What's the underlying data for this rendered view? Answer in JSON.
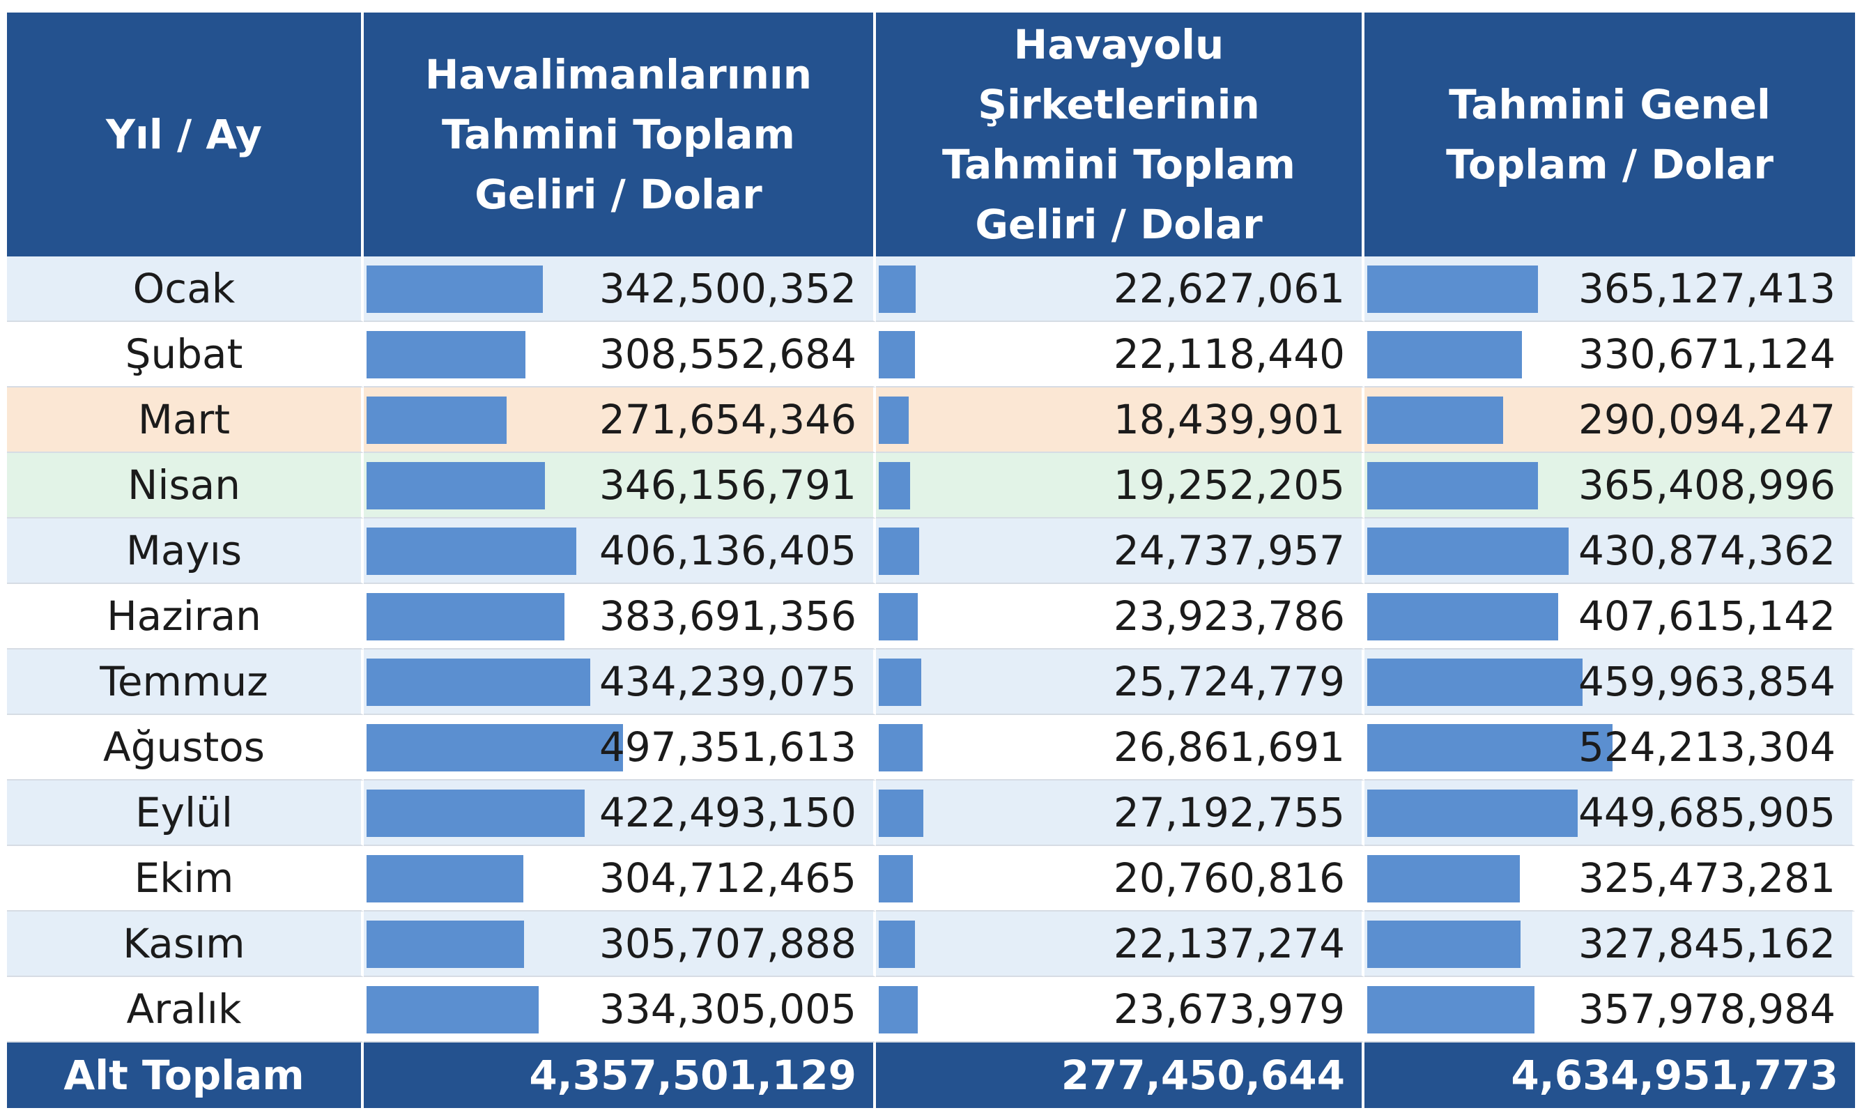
{
  "chart_data": {
    "type": "table",
    "columns": [
      "Yıl / Ay",
      "Havalimanlarının\nTahmini Toplam\nGeliri / Dolar",
      "Havayolu Şirketlerinin\nTahmini Toplam\nGeliri / Dolar",
      "Tahmini Genel\nToplam / Dolar"
    ],
    "rows": [
      {
        "month": "Ocak",
        "values": [
          342500352,
          22627061,
          365127413
        ],
        "labels": [
          "342,500,352",
          "22,627,061",
          "365,127,413"
        ]
      },
      {
        "month": "Şubat",
        "values": [
          308552684,
          22118440,
          330671124
        ],
        "labels": [
          "308,552,684",
          "22,118,440",
          "330,671,124"
        ]
      },
      {
        "month": "Mart",
        "values": [
          271654346,
          18439901,
          290094247
        ],
        "labels": [
          "271,654,346",
          "18,439,901",
          "290,094,247"
        ]
      },
      {
        "month": "Nisan",
        "values": [
          346156791,
          19252205,
          365408996
        ],
        "labels": [
          "346,156,791",
          "19,252,205",
          "365,408,996"
        ]
      },
      {
        "month": "Mayıs",
        "values": [
          406136405,
          24737957,
          430874362
        ],
        "labels": [
          "406,136,405",
          "24,737,957",
          "430,874,362"
        ]
      },
      {
        "month": "Haziran",
        "values": [
          383691356,
          23923786,
          407615142
        ],
        "labels": [
          "383,691,356",
          "23,923,786",
          "407,615,142"
        ]
      },
      {
        "month": "Temmuz",
        "values": [
          434239075,
          25724779,
          459963854
        ],
        "labels": [
          "434,239,075",
          "25,724,779",
          "459,963,854"
        ]
      },
      {
        "month": "Ağustos",
        "values": [
          497351613,
          26861691,
          524213304
        ],
        "labels": [
          "497,351,613",
          "26,861,691",
          "524,213,304"
        ]
      },
      {
        "month": "Eylül",
        "values": [
          422493150,
          27192755,
          449685905
        ],
        "labels": [
          "422,493,150",
          "27,192,755",
          "449,685,905"
        ]
      },
      {
        "month": "Ekim",
        "values": [
          304712465,
          20760816,
          325473281
        ],
        "labels": [
          "304,712,465",
          "20,760,816",
          "325,473,281"
        ]
      },
      {
        "month": "Kasım",
        "values": [
          305707888,
          22137274,
          327845162
        ],
        "labels": [
          "305,707,888",
          "22,137,274",
          "327,845,162"
        ]
      },
      {
        "month": "Aralık",
        "values": [
          334305005,
          23673979,
          357978984
        ],
        "labels": [
          "334,305,005",
          "23,673,979",
          "357,978,984"
        ]
      }
    ],
    "highlight_rows": {
      "Mart": "#fbe7d4",
      "Nisan": "#e2f3e7"
    },
    "totals": {
      "label": "Alt Toplam",
      "labels": [
        "4,357,501,129",
        "277,450,644",
        "4,634,951,773"
      ]
    },
    "colors": {
      "header": "#24528f",
      "bar": "#5b8fd0",
      "row_alt": "#e4eef8"
    }
  }
}
